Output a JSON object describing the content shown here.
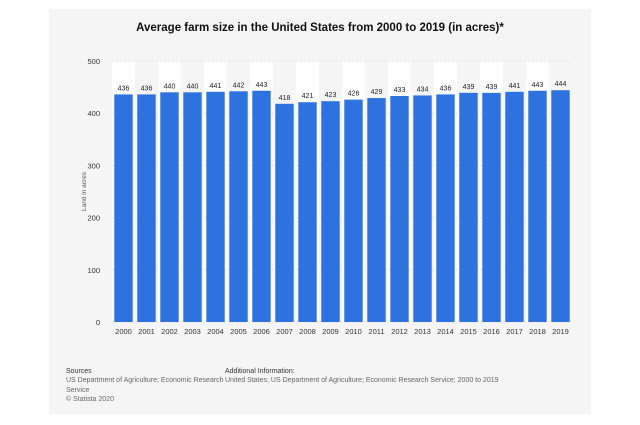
{
  "chart_data": {
    "type": "bar",
    "title": "Average farm size in the United States from 2000 to 2019 (in acres)*",
    "xlabel": "",
    "ylabel": "Land in acres",
    "ylim": [
      0,
      500
    ],
    "yticks": [
      0,
      100,
      200,
      300,
      400,
      500
    ],
    "grid": true,
    "bar_color": "#2e72e0",
    "categories": [
      "2000",
      "2001",
      "2002",
      "2003",
      "2004",
      "2005",
      "2006",
      "2007",
      "2008",
      "2009",
      "2010",
      "2011",
      "2012",
      "2013",
      "2014",
      "2015",
      "2016",
      "2017",
      "2018",
      "2019"
    ],
    "values": [
      436,
      436,
      440,
      440,
      441,
      442,
      443,
      418,
      421,
      423,
      426,
      429,
      433,
      434,
      436,
      439,
      439,
      441,
      443,
      444
    ]
  },
  "footer": {
    "sources_heading": "Sources",
    "sources_text": "US Department of Agriculture; Economic Research Service",
    "copyright": "© Statista 2020",
    "info_heading": "Additional Information:",
    "info_text": "United States; US Department of Agriculture; Economic Research Service; 2000 to 2019"
  }
}
